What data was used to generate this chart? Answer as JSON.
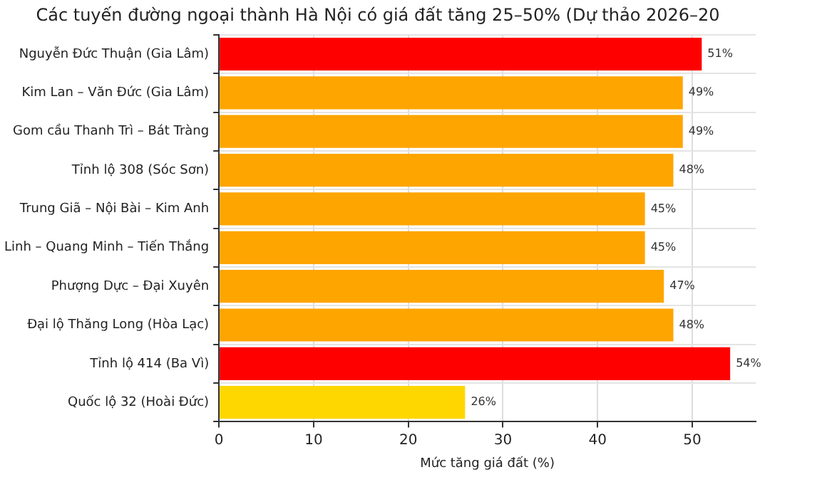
{
  "chart_data": {
    "type": "bar",
    "orientation": "horizontal",
    "title": "Các tuyến đường ngoại thành Hà Nội có giá đất tăng 25–50% (Dự thảo 2026–20",
    "xlabel": "Mức tăng giá đất (%)",
    "categories": [
      "Nguyễn Đức Thuận (Gia Lâm)",
      "Kim Lan – Văn Đức (Gia Lâm)",
      "Gom cầu Thanh Trì – Bát Tràng",
      "Tỉnh lộ 308 (Sóc Sơn)",
      "Trung Giã – Nội Bài – Kim Anh",
      "Linh – Quang Minh – Tiến Thắng",
      "Phượng Dực – Đại Xuyên",
      "Đại lộ Thăng Long (Hòa Lạc)",
      "Tỉnh lộ 414 (Ba Vì)",
      "Quốc lộ 32 (Hoài Đức)"
    ],
    "values": [
      51,
      49,
      49,
      48,
      45,
      45,
      47,
      48,
      54,
      26
    ],
    "value_labels": [
      "51%",
      "49%",
      "49%",
      "48%",
      "45%",
      "45%",
      "47%",
      "48%",
      "54%",
      "26%"
    ],
    "colors": [
      "#ff0000",
      "#ffa500",
      "#ffa500",
      "#ffa500",
      "#ffa500",
      "#ffa500",
      "#ffa500",
      "#ffa500",
      "#ff0000",
      "#ffd700"
    ],
    "xlim": [
      0,
      56.7
    ],
    "xticks": [
      0,
      10,
      20,
      30,
      40,
      50
    ],
    "grid": true,
    "legend": false
  }
}
